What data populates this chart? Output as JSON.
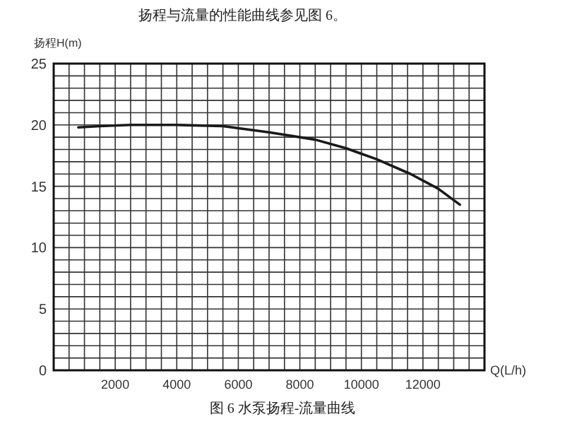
{
  "chart_data": {
    "type": "line",
    "title": "图 6  水泵扬程-流量曲线",
    "annotations": [
      "扬程与流量的性能曲线参见图 6。"
    ],
    "xlabel": "Q(L/h)",
    "ylabel": "扬程H(m)",
    "x": [
      800,
      1500,
      2500,
      4000,
      5500,
      7000,
      8500,
      9500,
      10500,
      11600,
      12500,
      13200
    ],
    "series": [
      {
        "color": "#1a1a1a",
        "values": [
          19.8,
          19.9,
          20.0,
          20.0,
          19.9,
          19.4,
          18.8,
          18.1,
          17.2,
          16.0,
          14.8,
          13.5
        ]
      }
    ],
    "xlim": [
      0,
      14000
    ],
    "ylim": [
      0,
      25
    ],
    "xticks": [
      {
        "value": 0,
        "label": null
      },
      {
        "value": 500,
        "label": null
      },
      {
        "value": 1000,
        "label": null
      },
      {
        "value": 1500,
        "label": null
      },
      2000,
      {
        "value": 2500,
        "label": null
      },
      {
        "value": 3000,
        "label": null
      },
      {
        "value": 3500,
        "label": null
      },
      4000,
      {
        "value": 4500,
        "label": null
      },
      {
        "value": 5000,
        "label": null
      },
      {
        "value": 5500,
        "label": null
      },
      6000,
      {
        "value": 6500,
        "label": null
      },
      {
        "value": 7000,
        "label": null
      },
      {
        "value": 7500,
        "label": null
      },
      8000,
      {
        "value": 8500,
        "label": null
      },
      {
        "value": 9000,
        "label": null
      },
      {
        "value": 9500,
        "label": null
      },
      10000,
      {
        "value": 10500,
        "label": null
      },
      {
        "value": 11000,
        "label": null
      },
      {
        "value": 11500,
        "label": null
      },
      12000,
      {
        "value": 12500,
        "label": null
      },
      {
        "value": 13000,
        "label": null
      },
      {
        "value": 13500,
        "label": null
      },
      {
        "value": 14000,
        "label": null
      }
    ],
    "yticks": [
      0,
      {
        "value": 1,
        "label": null
      },
      {
        "value": 2,
        "label": null
      },
      {
        "value": 3,
        "label": null
      },
      {
        "value": 4,
        "label": null
      },
      5,
      {
        "value": 6,
        "label": null
      },
      {
        "value": 7,
        "label": null
      },
      {
        "value": 8,
        "label": null
      },
      {
        "value": 9,
        "label": null
      },
      10,
      {
        "value": 11,
        "label": null
      },
      {
        "value": 12,
        "label": null
      },
      {
        "value": 13,
        "label": null
      },
      {
        "value": 14,
        "label": null
      },
      15,
      {
        "value": 16,
        "label": null
      },
      {
        "value": 17,
        "label": null
      },
      {
        "value": 18,
        "label": null
      },
      {
        "value": 19,
        "label": null
      },
      20,
      {
        "value": 21,
        "label": null
      },
      {
        "value": 22,
        "label": null
      },
      {
        "value": 23,
        "label": null
      },
      {
        "value": 24,
        "label": null
      },
      25
    ],
    "grid": true,
    "marker": "none",
    "line_style": "solid"
  }
}
